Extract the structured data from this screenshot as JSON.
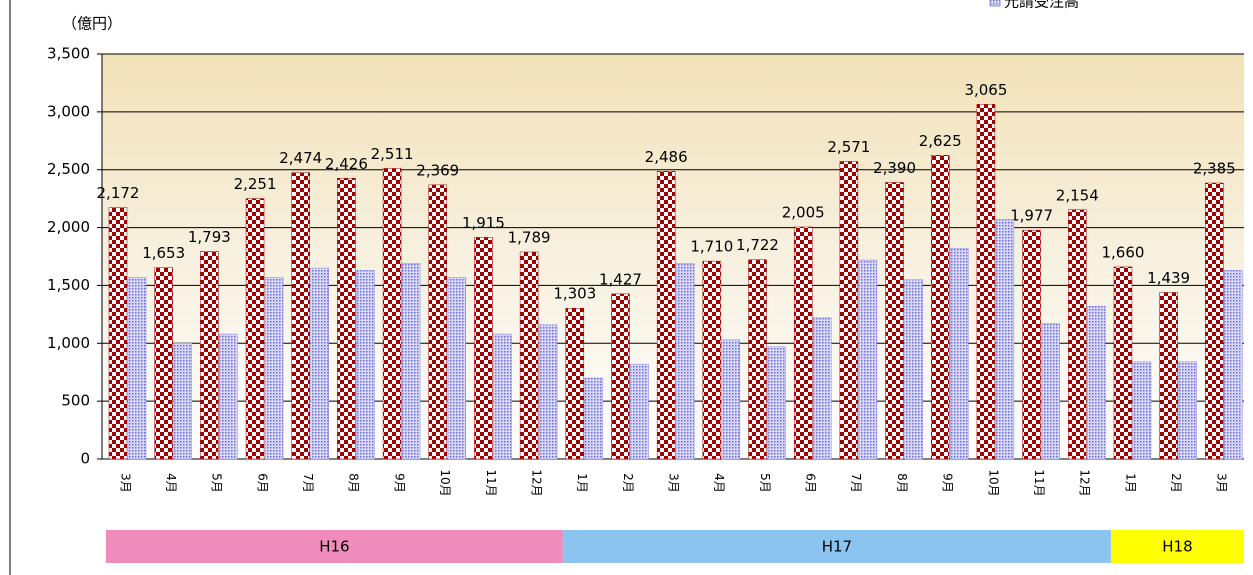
{
  "chart_data": {
    "type": "bar",
    "y_label": "（億円）",
    "categories": [
      "3月",
      "4月",
      "5月",
      "6月",
      "7月",
      "8月",
      "9月",
      "10月",
      "11月",
      "12月",
      "1月",
      "2月",
      "3月",
      "4月",
      "5月",
      "6月",
      "7月",
      "8月",
      "9月",
      "10月",
      "11月",
      "12月",
      "1月",
      "2月",
      "3月"
    ],
    "periods": [
      {
        "label": "H16",
        "color": "#f08cbc"
      },
      {
        "label": "H17",
        "color": "#8cc4f0"
      },
      {
        "label": "H18",
        "color": "#ffff00"
      }
    ],
    "series": [
      {
        "color": "#a00000",
        "values": [
          2172,
          1653,
          1793,
          2251,
          2474,
          2426,
          2511,
          2369,
          1915,
          1789,
          1303,
          1427,
          2486,
          1710,
          1722,
          2005,
          2571,
          2390,
          2625,
          3065,
          1977,
          2154,
          1660,
          1439,
          2385
        ],
        "value_labels": [
          "2,172",
          "1,653",
          "1,793",
          "2,251",
          "2,474",
          "2,426",
          "2,511",
          "2,369",
          "1,915",
          "1,789",
          "1,303",
          "1,427",
          "2,486",
          "1,710",
          "1,722",
          "2,005",
          "2,571",
          "2,390",
          "2,625",
          "3,065",
          "1,977",
          "2,154",
          "1,660",
          "1,439",
          "2,385"
        ]
      },
      {
        "name": "元請受注高",
        "color": "#8c8ce6",
        "values": [
          1570,
          1000,
          1080,
          1570,
          1650,
          1630,
          1690,
          1570,
          1080,
          1160,
          700,
          820,
          1690,
          1030,
          970,
          1220,
          1720,
          1550,
          1820,
          2070,
          1170,
          1320,
          840,
          840,
          1630
        ]
      }
    ],
    "ylim": [
      0,
      3500
    ],
    "yticks": [
      0,
      500,
      {
        "value": 1000,
        "label": "1,000"
      },
      {
        "value": 1500,
        "label": "1,500"
      },
      {
        "value": 2000,
        "label": "2,000"
      },
      {
        "value": 2500,
        "label": "2,500"
      },
      {
        "value": 3000,
        "label": "3,000"
      },
      {
        "value": 3500,
        "label": "3,500"
      }
    ],
    "grid": true
  }
}
